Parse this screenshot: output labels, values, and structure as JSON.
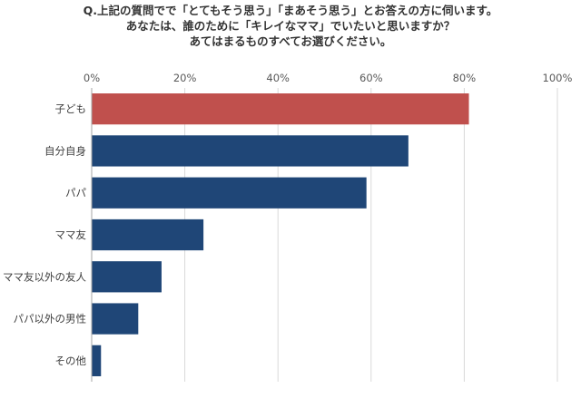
{
  "chart_data": {
    "type": "bar",
    "orientation": "horizontal",
    "title_lines": [
      "Q.上記の質問でで「とてもそう思う」「まあそう思う」とお答えの方に伺います。",
      "あなたは、誰のために「キレイなママ」でいたいと思いますか？",
      "あてはまるものすべてお選びください。"
    ],
    "categories": [
      "子ども",
      "自分自身",
      "パパ",
      "ママ友",
      "ママ友以外の友人",
      "パパ以外の男性",
      "その他"
    ],
    "values": [
      81,
      68,
      59,
      24,
      15,
      10,
      2
    ],
    "xlim": [
      0,
      100
    ],
    "ticks": [
      "0%",
      "20%",
      "40%",
      "60%",
      "80%",
      "100%"
    ],
    "tick_values": [
      0,
      20,
      40,
      60,
      80,
      100
    ],
    "grid": true,
    "legend": "none",
    "colors": {
      "highlight": "#C0504D",
      "default": "#1F4677",
      "grid": "#D9D9D9",
      "axis": "#A6A6A6"
    },
    "highlight_index": 0
  }
}
